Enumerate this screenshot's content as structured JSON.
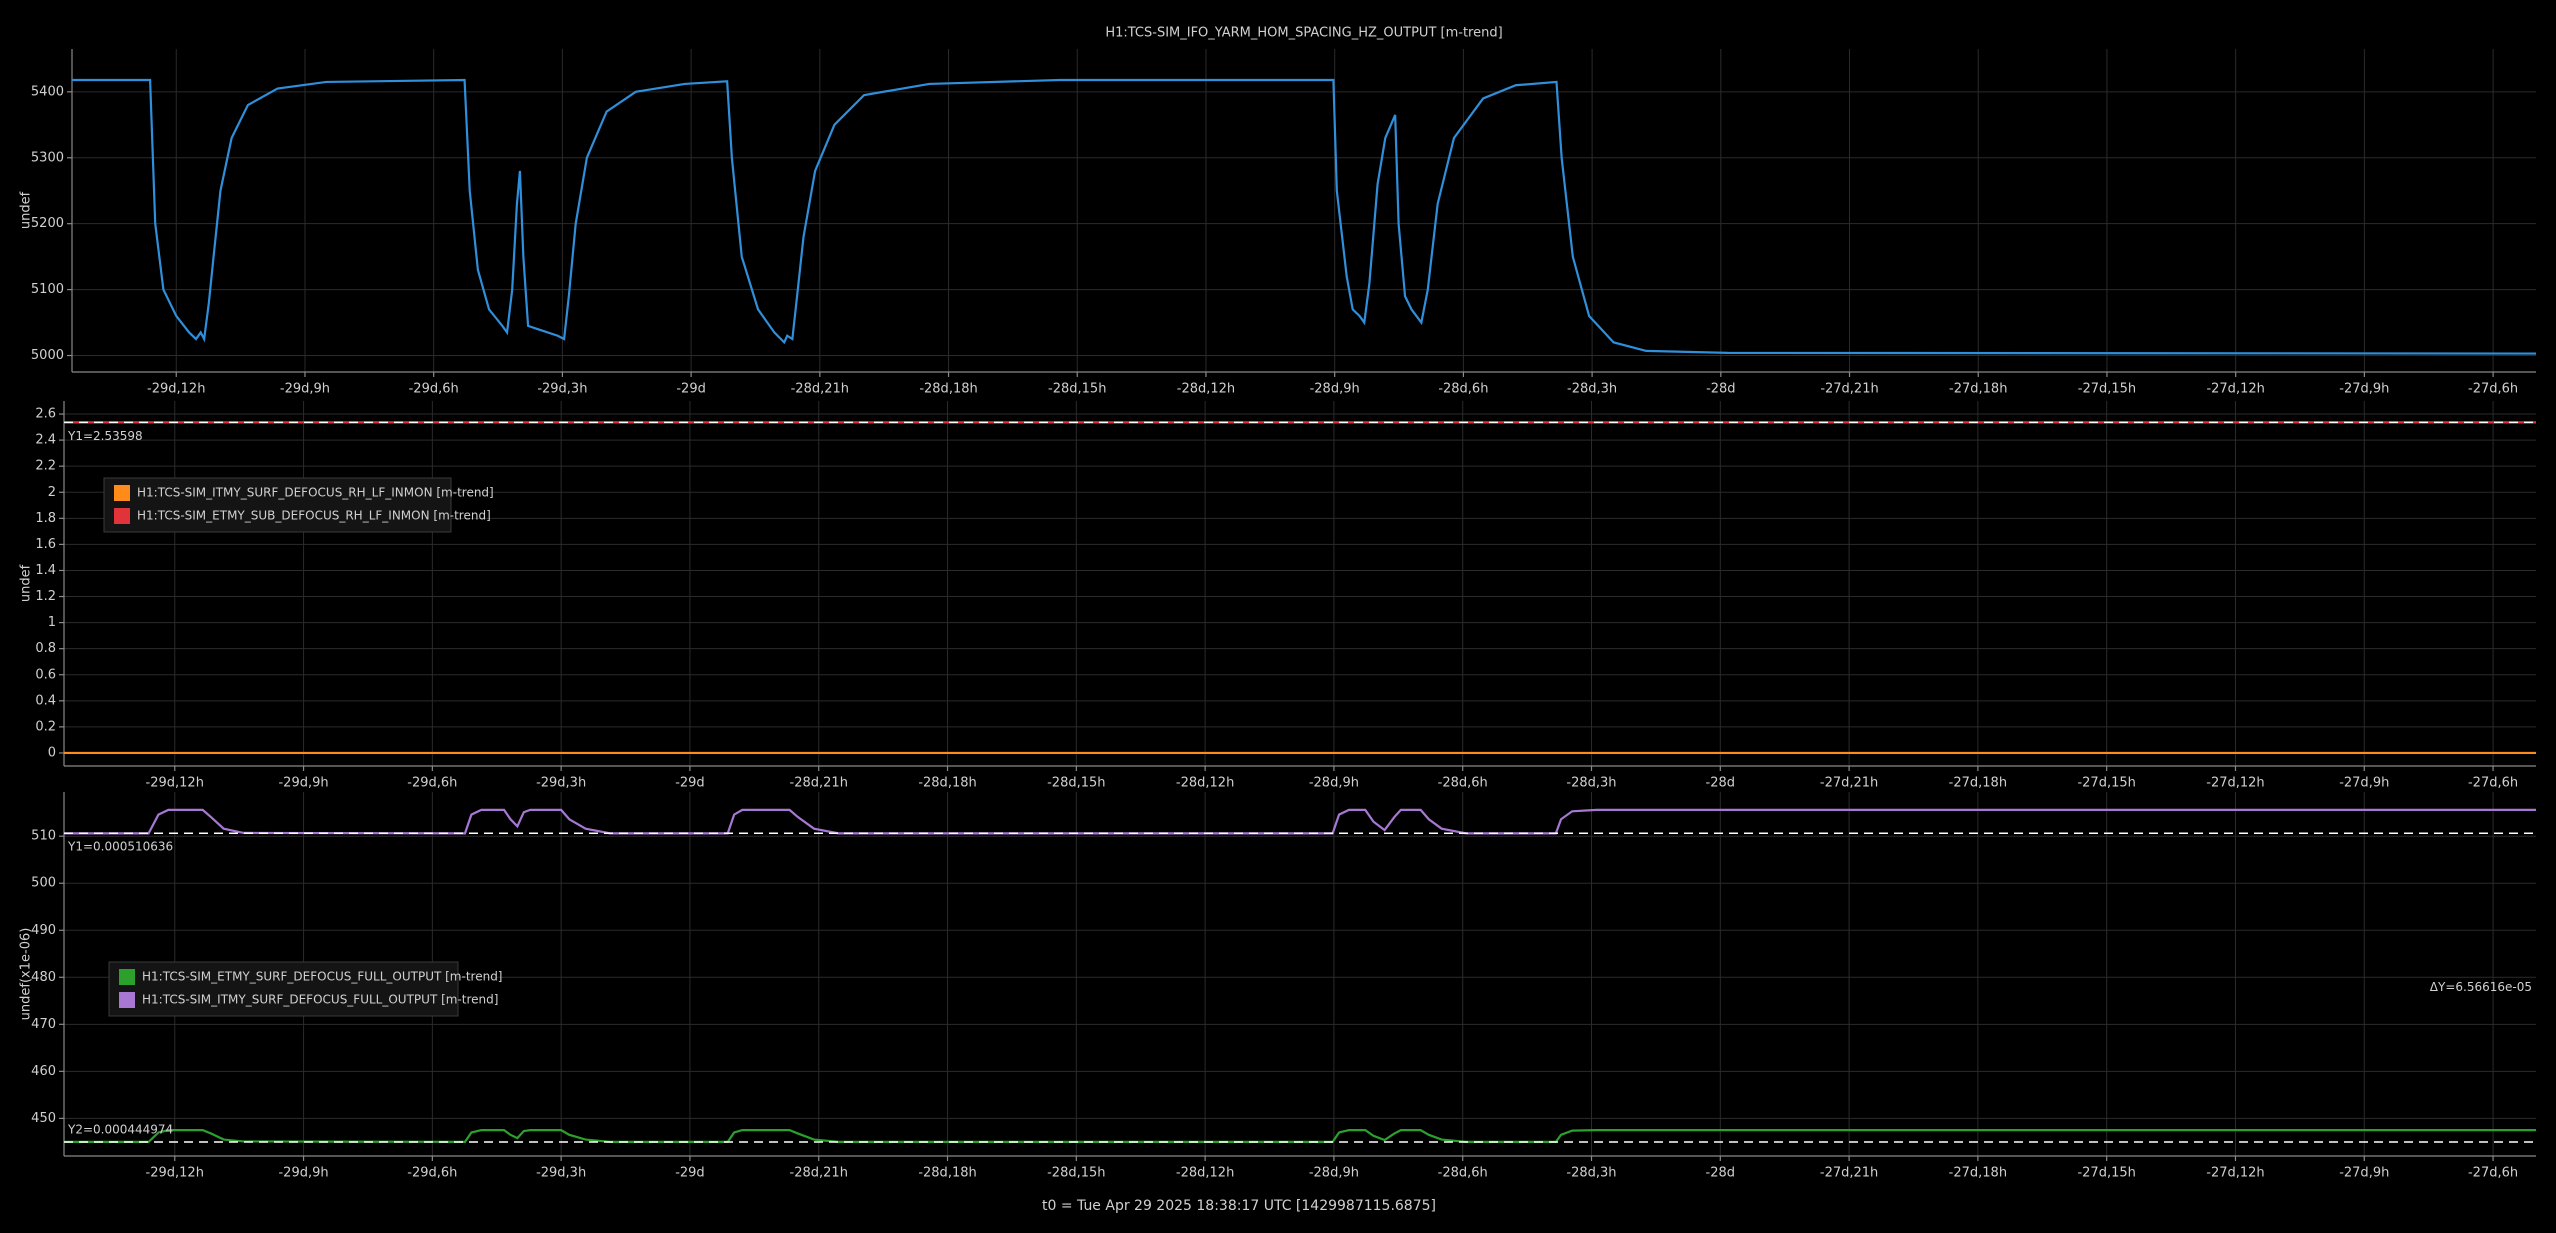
{
  "chart_data": [
    {
      "type": "line",
      "title": "H1:TCS-SIM_IFO_YARM_HOM_SPACING_HZ_OUTPUT [m-trend]",
      "ylabel": "undef",
      "color": "#2f8fdb",
      "x": [
        -710.43,
        -708.61,
        -708.49,
        -708.3,
        -708.0,
        -707.7,
        -707.54,
        -707.43,
        -707.35,
        -707.24,
        -707.13,
        -706.97,
        -706.71,
        -706.33,
        -705.64,
        -704.5,
        -701.28,
        -701.16,
        -700.97,
        -700.71,
        -700.4,
        -700.29,
        -700.17,
        -700.06,
        -699.99,
        -699.91,
        -699.8,
        -699.57,
        -699.11,
        -698.96,
        -698.85,
        -698.69,
        -698.43,
        -697.97,
        -697.29,
        -696.15,
        -695.16,
        -695.05,
        -694.82,
        -694.44,
        -694.06,
        -693.83,
        -693.76,
        -693.64,
        -693.53,
        -693.38,
        -693.11,
        -692.66,
        -691.97,
        -690.45,
        -687.41,
        -681.03,
        -680.95,
        -680.72,
        -680.58,
        -680.42,
        -680.31,
        -680.19,
        -680.0,
        -679.82,
        -679.59,
        -679.51,
        -679.36,
        -679.21,
        -678.98,
        -678.83,
        -678.6,
        -678.22,
        -677.54,
        -676.78,
        -675.83,
        -675.71,
        -675.45,
        -675.07,
        -674.5,
        -673.74,
        -671.84,
        -653.0
      ],
      "values": [
        5418,
        5418,
        5200,
        5100,
        5060,
        5035,
        5025,
        5035,
        5025,
        5080,
        5150,
        5250,
        5330,
        5380,
        5405,
        5415,
        5418,
        5250,
        5130,
        5070,
        5045,
        5035,
        5100,
        5230,
        5280,
        5150,
        5045,
        5040,
        5030,
        5025,
        5090,
        5200,
        5300,
        5370,
        5400,
        5412,
        5416,
        5300,
        5150,
        5070,
        5035,
        5020,
        5030,
        5025,
        5090,
        5180,
        5280,
        5350,
        5395,
        5412,
        5418,
        5418,
        5250,
        5120,
        5070,
        5060,
        5050,
        5110,
        5260,
        5330,
        5365,
        5200,
        5090,
        5070,
        5050,
        5100,
        5230,
        5330,
        5390,
        5410,
        5415,
        5300,
        5150,
        5060,
        5020,
        5007,
        5004,
        5003
      ],
      "xlim": [
        -710.43,
        -653.0
      ],
      "ylim": [
        4975,
        5465
      ],
      "xticks": [
        {
          "value": -708,
          "label": "-29d,12h"
        },
        {
          "value": -705,
          "label": "-29d,9h"
        },
        {
          "value": -702,
          "label": "-29d,6h"
        },
        {
          "value": -699,
          "label": "-29d,3h"
        },
        {
          "value": -696,
          "label": "-29d"
        },
        {
          "value": -693,
          "label": "-28d,21h"
        },
        {
          "value": -690,
          "label": "-28d,18h"
        },
        {
          "value": -687,
          "label": "-28d,15h"
        },
        {
          "value": -684,
          "label": "-28d,12h"
        },
        {
          "value": -681,
          "label": "-28d,9h"
        },
        {
          "value": -678,
          "label": "-28d,6h"
        },
        {
          "value": -675,
          "label": "-28d,3h"
        },
        {
          "value": -672,
          "label": "-28d"
        },
        {
          "value": -669,
          "label": "-27d,21h"
        },
        {
          "value": -666,
          "label": "-27d,18h"
        },
        {
          "value": -663,
          "label": "-27d,15h"
        },
        {
          "value": -660,
          "label": "-27d,12h"
        },
        {
          "value": -657,
          "label": "-27d,9h"
        },
        {
          "value": -654,
          "label": "-27d,6h"
        }
      ],
      "yticks": [
        5000,
        5100,
        5200,
        5300,
        5400
      ],
      "grid": true
    },
    {
      "type": "line",
      "ylabel": "undef",
      "x": [
        -710.58,
        -653.0
      ],
      "series": [
        {
          "name": "H1:TCS-SIM_ITMY_SURF_DEFOCUS_RH_LF_INMON [m-trend]",
          "color": "#ff8c1a",
          "values": [
            0,
            0
          ]
        },
        {
          "name": "H1:TCS-SIM_ETMY_SUB_DEFOCUS_RH_LF_INMON [m-trend]",
          "color": "#e0343a",
          "values": [
            2.536,
            2.536
          ]
        }
      ],
      "cursors": [
        {
          "label": "Y1=2.53598",
          "value": 2.53598
        }
      ],
      "xlim": [
        -710.58,
        -653.0
      ],
      "ylim": [
        -0.1,
        2.7
      ],
      "xticks": [
        {
          "value": -708,
          "label": "-29d,12h"
        },
        {
          "value": -705,
          "label": "-29d,9h"
        },
        {
          "value": -702,
          "label": "-29d,6h"
        },
        {
          "value": -699,
          "label": "-29d,3h"
        },
        {
          "value": -696,
          "label": "-29d"
        },
        {
          "value": -693,
          "label": "-28d,21h"
        },
        {
          "value": -690,
          "label": "-28d,18h"
        },
        {
          "value": -687,
          "label": "-28d,15h"
        },
        {
          "value": -684,
          "label": "-28d,12h"
        },
        {
          "value": -681,
          "label": "-28d,9h"
        },
        {
          "value": -678,
          "label": "-28d,6h"
        },
        {
          "value": -675,
          "label": "-28d,3h"
        },
        {
          "value": -672,
          "label": "-28d"
        },
        {
          "value": -669,
          "label": "-27d,21h"
        },
        {
          "value": -666,
          "label": "-27d,18h"
        },
        {
          "value": -663,
          "label": "-27d,15h"
        },
        {
          "value": -660,
          "label": "-27d,12h"
        },
        {
          "value": -657,
          "label": "-27d,9h"
        },
        {
          "value": -654,
          "label": "-27d,6h"
        }
      ],
      "yticks": [
        0,
        0.2,
        0.4,
        0.6,
        0.8,
        1,
        1.2,
        1.4,
        1.6,
        1.8,
        2,
        2.2,
        2.4,
        2.6
      ],
      "grid": true
    },
    {
      "type": "line",
      "ylabel": "undef(x1e-06)",
      "x": [
        -710.58,
        -708.61,
        -708.38,
        -708.15,
        -707.35,
        -707.16,
        -706.86,
        -706.4,
        -701.24,
        -701.09,
        -700.86,
        -700.33,
        -700.18,
        -700.02,
        -699.87,
        -699.72,
        -699.0,
        -698.81,
        -698.43,
        -697.86,
        -695.12,
        -694.97,
        -694.78,
        -693.68,
        -693.49,
        -693.11,
        -692.54,
        -681.03,
        -680.88,
        -680.65,
        -680.27,
        -680.08,
        -679.82,
        -679.59,
        -679.44,
        -678.98,
        -678.79,
        -678.49,
        -677.92,
        -675.83,
        -675.71,
        -675.45,
        -674.88,
        -653.0
      ],
      "series": [
        {
          "name": "H1:TCS-SIM_ETMY_SURF_DEFOCUS_FULL_OUTPUT [m-trend]",
          "color": "#2ca02c",
          "values": [
            445.0,
            445.0,
            447.0,
            447.5,
            447.5,
            446.8,
            445.5,
            445.1,
            445.0,
            447.0,
            447.5,
            447.5,
            446.5,
            445.8,
            447.3,
            447.5,
            447.5,
            446.5,
            445.5,
            445.0,
            445.0,
            447.0,
            447.5,
            447.5,
            446.8,
            445.5,
            445.0,
            445.0,
            447.0,
            447.5,
            447.5,
            446.3,
            445.4,
            446.8,
            447.5,
            447.5,
            446.5,
            445.5,
            445.0,
            445.0,
            446.5,
            447.4,
            447.5,
            447.5
          ]
        },
        {
          "name": "H1:TCS-SIM_ITMY_SURF_DEFOCUS_FULL_OUTPUT [m-trend]",
          "color": "#a678d4",
          "values": [
            510.6,
            510.6,
            514.6,
            515.6,
            515.6,
            514.1,
            511.6,
            510.7,
            510.6,
            514.6,
            515.6,
            515.6,
            513.6,
            512.1,
            515.1,
            515.6,
            515.6,
            513.6,
            511.6,
            510.6,
            510.6,
            514.6,
            515.6,
            515.6,
            514.1,
            511.6,
            510.6,
            510.6,
            514.6,
            515.6,
            515.6,
            513.1,
            511.3,
            514.1,
            515.6,
            515.6,
            513.6,
            511.6,
            510.6,
            510.6,
            513.6,
            515.3,
            515.6,
            515.6
          ]
        }
      ],
      "cursors": [
        {
          "label": "Y1=0.000510636",
          "value": 510.636
        },
        {
          "label": "Y2=0.000444974",
          "value": 444.974
        }
      ],
      "delta_label": "ΔY=6.56616e-05",
      "xlim": [
        -710.58,
        -653.0
      ],
      "ylim": [
        442,
        519.4
      ],
      "xticks": [
        {
          "value": -708,
          "label": "-29d,12h"
        },
        {
          "value": -705,
          "label": "-29d,9h"
        },
        {
          "value": -702,
          "label": "-29d,6h"
        },
        {
          "value": -699,
          "label": "-29d,3h"
        },
        {
          "value": -696,
          "label": "-29d"
        },
        {
          "value": -693,
          "label": "-28d,21h"
        },
        {
          "value": -690,
          "label": "-28d,18h"
        },
        {
          "value": -687,
          "label": "-28d,15h"
        },
        {
          "value": -684,
          "label": "-28d,12h"
        },
        {
          "value": -681,
          "label": "-28d,9h"
        },
        {
          "value": -678,
          "label": "-28d,6h"
        },
        {
          "value": -675,
          "label": "-28d,3h"
        },
        {
          "value": -672,
          "label": "-28d"
        },
        {
          "value": -669,
          "label": "-27d,21h"
        },
        {
          "value": -666,
          "label": "-27d,18h"
        },
        {
          "value": -663,
          "label": "-27d,15h"
        },
        {
          "value": -660,
          "label": "-27d,12h"
        },
        {
          "value": -657,
          "label": "-27d,9h"
        },
        {
          "value": -654,
          "label": "-27d,6h"
        }
      ],
      "yticks": [
        450,
        460,
        470,
        480,
        490,
        500,
        510
      ],
      "grid": true
    }
  ],
  "footer": "t0 = Tue Apr 29 2025 18:38:17 UTC [1429987115.6875]"
}
